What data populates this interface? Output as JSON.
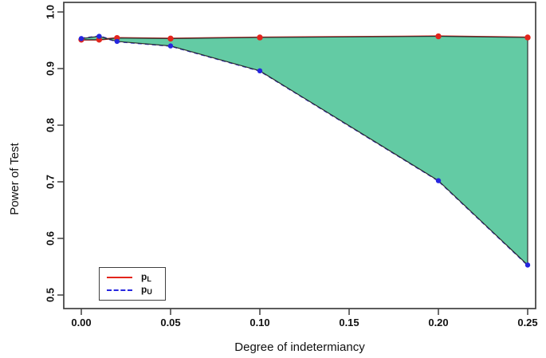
{
  "figure": {
    "background": "#ffffff",
    "text_color": "#111111",
    "frame_color": "#3f3f3f"
  },
  "chart_data": {
    "type": "line",
    "title": "",
    "xlabel": "Degree of indetermiancy",
    "ylabel": "Power of Test",
    "xlim": [
      0.0,
      0.25
    ],
    "ylim": [
      0.5,
      1.0
    ],
    "grid": false,
    "x": [
      0.0,
      0.01,
      0.02,
      0.05,
      0.1,
      0.2,
      0.25
    ],
    "series": [
      {
        "name": "p_L",
        "color": "#e3251c",
        "line_style": "solid",
        "point_shape": "circle",
        "point_radius": 3.7,
        "values": [
          0.951,
          0.951,
          0.954,
          0.953,
          0.955,
          0.957,
          0.955
        ]
      },
      {
        "name": "p_U",
        "color": "#2626df",
        "line_style": "dashed",
        "point_shape": "circle",
        "point_radius": 3.2,
        "values": [
          0.953,
          0.957,
          0.948,
          0.94,
          0.896,
          0.702,
          0.553
        ]
      }
    ],
    "fill_between": {
      "between": [
        "p_L",
        "p_U"
      ],
      "color": "#63cba4",
      "border_color": "#2e2e2e",
      "closed_at_right": true
    },
    "x_tick_values": [
      0.0,
      0.05,
      0.1,
      0.15,
      0.2,
      0.25
    ],
    "x_tick_labels": [
      "0.00",
      "0.05",
      "0.10",
      "0.15",
      "0.20",
      "0.25"
    ],
    "y_tick_values": [
      0.5,
      0.6,
      0.7,
      0.8,
      0.9,
      1.0
    ],
    "y_tick_labels": [
      "0.5",
      "0.6",
      "0.7",
      "0.8",
      "0.9",
      "1.0"
    ],
    "legend": {
      "position": "bottom-left",
      "entries": [
        {
          "base": "p",
          "sub": "L"
        },
        {
          "base": "p",
          "sub": "U"
        }
      ]
    }
  }
}
